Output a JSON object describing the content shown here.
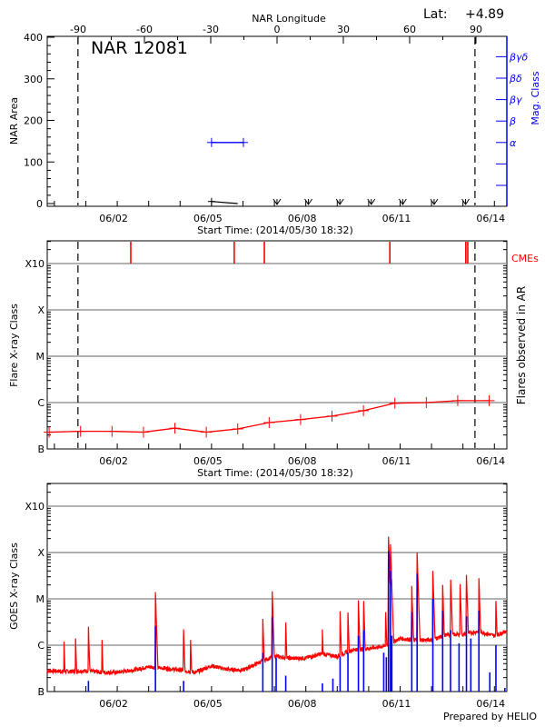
{
  "header": {
    "lat_label": "Lat:",
    "lat_value": "+4.89",
    "footer": "Prepared by HELIO"
  },
  "colors": {
    "flare": "#ff0000",
    "mag_class": "#0000ff",
    "goes_long": "#ff0000",
    "goes_short": "#0000ff",
    "grid": "#999999",
    "axis": "#000000"
  },
  "chart_data": [
    {
      "type": "line",
      "title": "NAR 12081",
      "ylabel": "NAR Area",
      "ylim": [
        0,
        400
      ],
      "yticks": [
        0,
        100,
        200,
        300,
        400
      ],
      "xlabel": "Start Time: (2014/05/30 18:32)",
      "start_time": "2014-05-30 18:32",
      "xticks": [
        {
          "label": "06/02",
          "time": "2014-06-02 00:00"
        },
        {
          "label": "06/05",
          "time": "2014-06-05 00:00"
        },
        {
          "label": "06/08",
          "time": "2014-06-08 00:00"
        },
        {
          "label": "06/11",
          "time": "2014-06-11 00:00"
        },
        {
          "label": "06/14",
          "time": "2014-06-14 00:00"
        }
      ],
      "top_xlabel": "NAR Longitude",
      "top_xticks": [
        -90,
        -60,
        -30,
        0,
        30,
        60,
        90
      ],
      "y2label": "Mag. Class",
      "y2ticks": [
        "α",
        "β",
        "βγ",
        "βδ",
        "βγδ"
      ],
      "limb_times": [
        "2014-05-31 18:00",
        "2014-06-13 09:10"
      ],
      "series": [
        {
          "kind": "area",
          "points": [
            [
              "2014-06-05 00:00",
              5
            ],
            [
              "2014-06-05 20:00",
              0
            ]
          ]
        },
        {
          "kind": "mag_class",
          "points": [
            [
              "2014-06-05 00:00",
              "α"
            ],
            [
              "2014-06-06 00:20",
              "α"
            ]
          ]
        },
        {
          "kind": "no_data",
          "points": [
            [
              "2014-06-07 02:00",
              0
            ],
            [
              "2014-06-08 02:00",
              0
            ],
            [
              "2014-06-09 02:00",
              0
            ],
            [
              "2014-06-10 02:00",
              0
            ],
            [
              "2014-06-11 02:00",
              0
            ],
            [
              "2014-06-12 02:00",
              0
            ],
            [
              "2014-06-13 02:00",
              0
            ]
          ]
        }
      ]
    },
    {
      "type": "line",
      "ylabel": "Flare X-ray Class",
      "y2label": "Flares observed in AR",
      "yscale": "log",
      "ylim_flux": [
        1e-07,
        0.003
      ],
      "yticks": [
        {
          "label": "B",
          "flux": 1e-07
        },
        {
          "label": "C",
          "flux": 1e-06
        },
        {
          "label": "M",
          "flux": 1e-05
        },
        {
          "label": "X",
          "flux": 0.0001
        },
        {
          "label": "X10",
          "flux": 0.001
        }
      ],
      "grid": true,
      "xlabel": "Start Time: (2014/05/30 18:32)",
      "xticks": [
        "06/02",
        "06/05",
        "06/08",
        "06/11",
        "06/14"
      ],
      "limb_times": [
        "2014-05-31 18:00",
        "2014-06-13 09:10"
      ],
      "cme_label": "CMEs",
      "cmes": [
        "2014-06-02 10:20",
        "2014-06-05 17:20",
        "2014-06-06 16:20",
        "2014-06-10 16:10",
        "2014-06-13 02:10",
        "2014-06-13 03:40"
      ],
      "series": [
        {
          "points": [
            [
              "2014-05-30 20:00",
              2.3e-07
            ],
            [
              "2014-05-31 20:00",
              2.4e-07
            ],
            [
              "2014-06-01 20:00",
              2.4e-07
            ],
            [
              "2014-06-02 20:00",
              2.3e-07
            ],
            [
              "2014-06-03 20:00",
              2.8e-07
            ],
            [
              "2014-06-04 20:00",
              2.3e-07
            ],
            [
              "2014-06-05 20:00",
              2.7e-07
            ],
            [
              "2014-06-06 20:00",
              3.7e-07
            ],
            [
              "2014-06-07 20:00",
              4.3e-07
            ],
            [
              "2014-06-08 20:00",
              5.1e-07
            ],
            [
              "2014-06-09 20:00",
              6.7e-07
            ],
            [
              "2014-06-10 20:00",
              9.7e-07
            ],
            [
              "2014-06-11 20:00",
              1e-06
            ],
            [
              "2014-06-12 20:00",
              1.1e-06
            ],
            [
              "2014-06-13 20:00",
              1.1e-06
            ]
          ]
        }
      ]
    },
    {
      "type": "line",
      "ylabel": "GOES X-ray Class",
      "yscale": "log",
      "ylim_flux": [
        1e-07,
        0.003
      ],
      "yticks": [
        {
          "label": "B",
          "flux": 1e-07
        },
        {
          "label": "C",
          "flux": 1e-06
        },
        {
          "label": "M",
          "flux": 1e-05
        },
        {
          "label": "X",
          "flux": 0.0001
        },
        {
          "label": "X10",
          "flux": 0.001
        }
      ],
      "grid": true,
      "xticks": [
        "06/02",
        "06/05",
        "06/08",
        "06/11",
        "06/14"
      ],
      "series": [
        {
          "channel": "long",
          "baseline": [
            [
              "2014-05-30 19:00",
              2.8e-07
            ],
            [
              "2014-05-31 12:00",
              2.7e-07
            ],
            [
              "2014-06-01 00:00",
              2.8e-07
            ],
            [
              "2014-06-01 12:00",
              2.6e-07
            ],
            [
              "2014-06-02 00:00",
              2.6e-07
            ],
            [
              "2014-06-02 12:00",
              2.9e-07
            ],
            [
              "2014-06-03 00:00",
              3.4e-07
            ],
            [
              "2014-06-03 12:00",
              3.2e-07
            ],
            [
              "2014-06-04 00:00",
              2.9e-07
            ],
            [
              "2014-06-04 12:00",
              2.6e-07
            ],
            [
              "2014-06-05 00:00",
              3.6e-07
            ],
            [
              "2014-06-05 12:00",
              3e-07
            ],
            [
              "2014-06-06 00:00",
              2.9e-07
            ],
            [
              "2014-06-06 12:00",
              4.2e-07
            ],
            [
              "2014-06-07 00:00",
              5.8e-07
            ],
            [
              "2014-06-07 12:00",
              5.2e-07
            ],
            [
              "2014-06-08 00:00",
              5.3e-07
            ],
            [
              "2014-06-08 12:00",
              6.5e-07
            ],
            [
              "2014-06-09 00:00",
              5.8e-07
            ],
            [
              "2014-06-09 12:00",
              8e-07
            ],
            [
              "2014-06-10 00:00",
              8.5e-07
            ],
            [
              "2014-06-10 12:00",
              9.5e-07
            ],
            [
              "2014-06-11 00:00",
              1.4e-06
            ],
            [
              "2014-06-11 12:00",
              1.3e-06
            ],
            [
              "2014-06-12 00:00",
              1.3e-06
            ],
            [
              "2014-06-12 12:00",
              1.7e-06
            ],
            [
              "2014-06-13 00:00",
              1.7e-06
            ],
            [
              "2014-06-13 12:00",
              2e-06
            ],
            [
              "2014-06-14 00:00",
              1.6e-06
            ],
            [
              "2014-06-14 09:00",
              2e-06
            ]
          ],
          "peaks": [
            [
              "2014-05-31 07:20",
              1.2e-06
            ],
            [
              "2014-05-31 16:10",
              1.4e-06
            ],
            [
              "2014-06-01 02:00",
              2.5e-06
            ],
            [
              "2014-06-01 12:20",
              1.3e-06
            ],
            [
              "2014-06-03 05:10",
              1.4e-05
            ],
            [
              "2014-06-04 02:40",
              2.2e-06
            ],
            [
              "2014-06-04 08:00",
              1.3e-06
            ],
            [
              "2014-06-06 15:10",
              3.7e-06
            ],
            [
              "2014-06-06 22:20",
              1.45e-05
            ],
            [
              "2014-06-07 08:40",
              3.1e-06
            ],
            [
              "2014-06-08 12:40",
              2.2e-06
            ],
            [
              "2014-06-09 02:10",
              5.4e-06
            ],
            [
              "2014-06-09 08:10",
              5.1e-06
            ],
            [
              "2014-06-09 16:10",
              9.3e-06
            ],
            [
              "2014-06-09 20:10",
              9e-06
            ],
            [
              "2014-06-10 13:00",
              5.2e-06
            ],
            [
              "2014-06-10 15:10",
              0.00022
            ],
            [
              "2014-06-10 16:40",
              0.00015
            ],
            [
              "2014-06-10 17:20",
              1.9e-05
            ],
            [
              "2014-06-11 08:55",
              1.9e-05
            ],
            [
              "2014-06-11 13:00",
              0.0001
            ],
            [
              "2014-06-12 01:00",
              4e-05
            ],
            [
              "2014-06-12 08:30",
              2e-05
            ],
            [
              "2014-06-12 14:40",
              2.6e-05
            ],
            [
              "2014-06-12 21:50",
              2.1e-05
            ],
            [
              "2014-06-13 02:40",
              3.3e-05
            ],
            [
              "2014-06-13 12:10",
              2.8e-05
            ],
            [
              "2014-06-14 01:10",
              9e-06
            ]
          ]
        },
        {
          "channel": "short",
          "peaks": [
            [
              "2014-06-01 02:00",
              1.7e-07
            ],
            [
              "2014-06-03 05:10",
              2.6e-06
            ],
            [
              "2014-06-04 02:40",
              1.7e-07
            ],
            [
              "2014-06-06 15:10",
              6.9e-07
            ],
            [
              "2014-06-06 22:20",
              4e-06
            ],
            [
              "2014-06-07 01:20",
              5.4e-07
            ],
            [
              "2014-06-07 08:40",
              2.2e-07
            ],
            [
              "2014-06-08 12:40",
              1.5e-07
            ],
            [
              "2014-06-08 20:40",
              1.9e-07
            ],
            [
              "2014-06-09 02:10",
              5.7e-07
            ],
            [
              "2014-06-09 08:10",
              6.9e-07
            ],
            [
              "2014-06-09 16:10",
              1.6e-06
            ],
            [
              "2014-06-09 20:10",
              2.1e-06
            ],
            [
              "2014-06-10 11:30",
              6.9e-07
            ],
            [
              "2014-06-10 13:30",
              5.5e-07
            ],
            [
              "2014-06-10 15:10",
              0.000107
            ],
            [
              "2014-06-10 16:40",
              4e-05
            ],
            [
              "2014-06-10 17:40",
              1.6e-06
            ],
            [
              "2014-06-11 08:55",
              5.2e-06
            ],
            [
              "2014-06-11 13:00",
              3.5e-05
            ],
            [
              "2014-06-12 01:00",
              1e-05
            ],
            [
              "2014-06-12 08:30",
              5.6e-06
            ],
            [
              "2014-06-12 14:30",
              2.1e-06
            ],
            [
              "2014-06-12 21:00",
              1.1e-06
            ],
            [
              "2014-06-13 02:40",
              4.2e-06
            ],
            [
              "2014-06-13 06:00",
              1.4e-06
            ],
            [
              "2014-06-13 12:10",
              5.6e-06
            ],
            [
              "2014-06-13 20:30",
              2.6e-07
            ],
            [
              "2014-06-14 01:10",
              1e-06
            ],
            [
              "2014-06-14 08:00",
              1.2e-07
            ]
          ]
        }
      ]
    }
  ]
}
